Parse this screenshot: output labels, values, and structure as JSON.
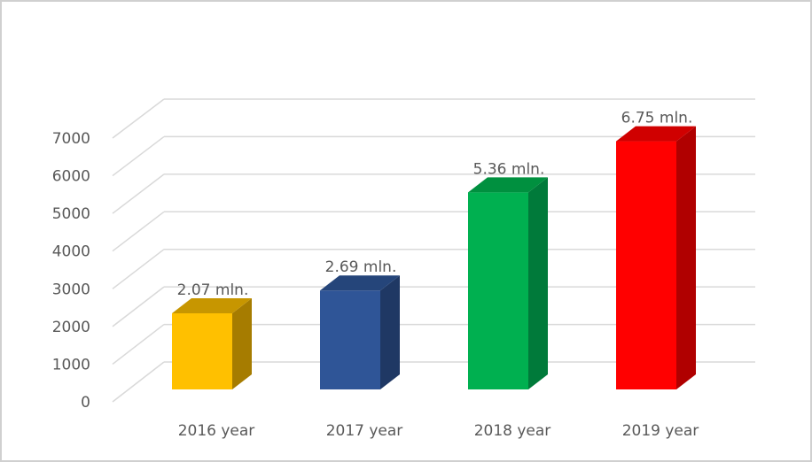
{
  "chart_data": {
    "type": "bar",
    "title": "",
    "xlabel": "",
    "ylabel": "",
    "categories": [
      "2016 year",
      "2017 year",
      "2018 year",
      "2019 year"
    ],
    "values": [
      2070,
      2690,
      5360,
      6750
    ],
    "data_labels": [
      "2.07 mln.",
      "2.69 mln.",
      "5.36 mln.",
      "6.75 mln."
    ],
    "colors": [
      "#FFC000",
      "#2F5597",
      "#00B050",
      "#FF0000"
    ],
    "side_colors": [
      "#A67C00",
      "#1F3864",
      "#007A3A",
      "#B00000"
    ],
    "top_colors": [
      "#C79600",
      "#25457A",
      "#00903F",
      "#D00000"
    ],
    "yticks": [
      0,
      1000,
      2000,
      3000,
      4000,
      5000,
      6000,
      7000
    ],
    "ylim": [
      0,
      7000
    ],
    "grid": true,
    "legend": "none",
    "style": "3d-column"
  }
}
